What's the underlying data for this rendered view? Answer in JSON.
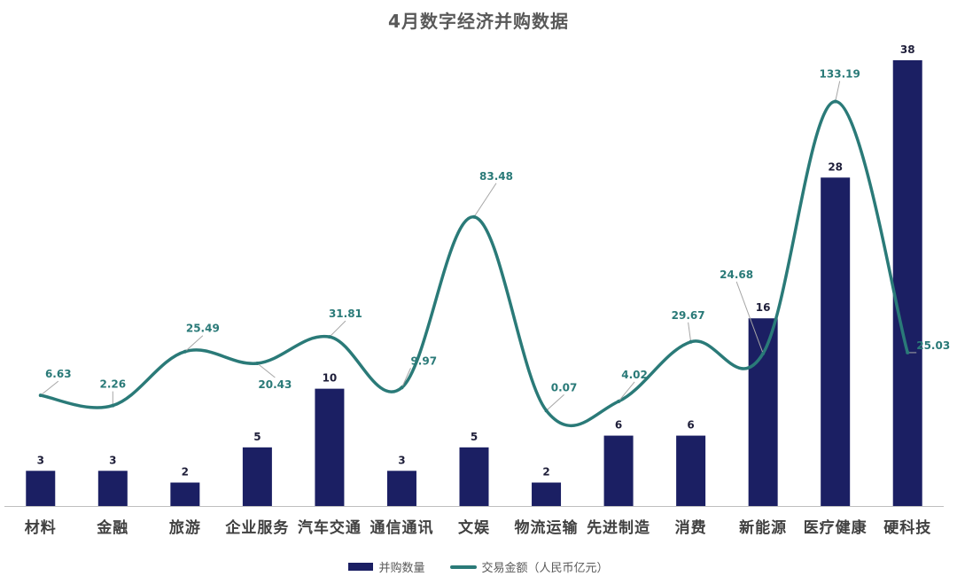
{
  "chart_data": {
    "type": "bar",
    "title": "4月数字经济并购数据",
    "categories": [
      "材料",
      "金融",
      "旅游",
      "企业服务",
      "汽车交通",
      "通信通讯",
      "文娱",
      "物流运输",
      "先进制造",
      "消费",
      "新能源",
      "医疗健康",
      "硬科技"
    ],
    "series": [
      {
        "name": "并购数量",
        "type": "bar",
        "color": "#1b1f63",
        "values": [
          3,
          3,
          2,
          5,
          10,
          3,
          5,
          2,
          6,
          6,
          16,
          28,
          38
        ],
        "labels": [
          "3",
          "3",
          "2",
          "5",
          "10",
          "3",
          "5",
          "2",
          "6",
          "6",
          "16",
          "28",
          "38"
        ]
      },
      {
        "name": "交易金额（人民币亿元）",
        "type": "line",
        "color": "#2a7a78",
        "values": [
          6.63,
          2.26,
          25.49,
          20.43,
          31.81,
          9.97,
          83.48,
          0.07,
          4.02,
          29.67,
          24.68,
          133.19,
          25.03
        ],
        "labels": [
          "6.63",
          "2.26",
          "25.49",
          "20.43",
          "31.81",
          "9.97",
          "83.48",
          "0.07",
          "4.02",
          "29.67",
          "24.68",
          "133.19",
          "25.03"
        ]
      }
    ],
    "legend": "bottom",
    "grid": false
  }
}
